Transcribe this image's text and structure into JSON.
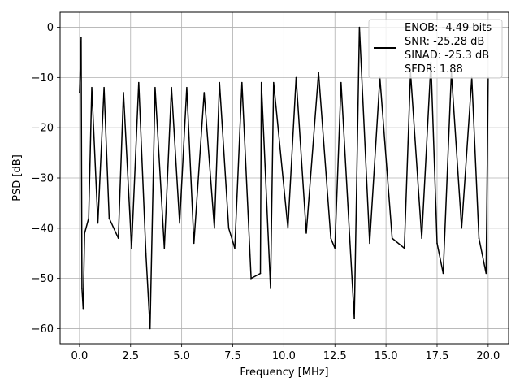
{
  "chart_data": {
    "type": "line",
    "title": "",
    "xlabel": "Frequency [MHz]",
    "ylabel": "PSD [dB]",
    "xlim": [
      -0.95,
      21.0
    ],
    "ylim": [
      -63,
      3
    ],
    "xticks": [
      0.0,
      2.5,
      5.0,
      7.5,
      10.0,
      12.5,
      15.0,
      17.5,
      20.0
    ],
    "xtick_labels": [
      "0.0",
      "2.5",
      "5.0",
      "7.5",
      "10.0",
      "12.5",
      "15.0",
      "17.5",
      "20.0"
    ],
    "yticks": [
      0,
      -10,
      -20,
      -30,
      -40,
      -50,
      -60
    ],
    "ytick_labels": [
      "0",
      "−10",
      "−20",
      "−30",
      "−40",
      "−50",
      "−60"
    ],
    "grid": true,
    "legend_position": "top-right",
    "series": [
      {
        "color": "#000000",
        "legend_lines": [
          "ENOB: -4.49 bits",
          "SNR: -25.28 dB",
          "SINAD: -25.3 dB",
          "SFDR: 1.88"
        ],
        "points": [
          [
            0.0,
            -13
          ],
          [
            0.08,
            -2
          ],
          [
            0.12,
            -52
          ],
          [
            0.18,
            -56
          ],
          [
            0.25,
            -41
          ],
          [
            0.45,
            -38
          ],
          [
            0.6,
            -12
          ],
          [
            0.9,
            -39
          ],
          [
            1.2,
            -12
          ],
          [
            1.45,
            -38
          ],
          [
            1.9,
            -42
          ],
          [
            2.15,
            -13
          ],
          [
            2.55,
            -44
          ],
          [
            2.9,
            -11
          ],
          [
            3.25,
            -45
          ],
          [
            3.45,
            -60
          ],
          [
            3.7,
            -12
          ],
          [
            4.15,
            -44
          ],
          [
            4.5,
            -12
          ],
          [
            4.9,
            -39
          ],
          [
            5.25,
            -12
          ],
          [
            5.6,
            -43
          ],
          [
            6.1,
            -13
          ],
          [
            6.6,
            -40
          ],
          [
            6.85,
            -11
          ],
          [
            7.3,
            -40
          ],
          [
            7.6,
            -44
          ],
          [
            7.95,
            -11
          ],
          [
            8.4,
            -50
          ],
          [
            8.9,
            -11
          ],
          [
            8.85,
            -49
          ],
          [
            9.35,
            -52
          ],
          [
            9.5,
            -11
          ],
          [
            10.2,
            -40
          ],
          [
            10.6,
            -10
          ],
          [
            11.1,
            -41
          ],
          [
            11.7,
            -9
          ],
          [
            12.3,
            -42
          ],
          [
            12.5,
            -44
          ],
          [
            12.8,
            -11
          ],
          [
            13.2,
            -40
          ],
          [
            13.45,
            -58
          ],
          [
            13.7,
            0
          ],
          [
            14.2,
            -43
          ],
          [
            14.7,
            -10
          ],
          [
            15.3,
            -42
          ],
          [
            15.9,
            -44
          ],
          [
            16.2,
            -9
          ],
          [
            16.75,
            -42
          ],
          [
            17.2,
            -7
          ],
          [
            17.5,
            -43
          ],
          [
            17.8,
            -49
          ],
          [
            18.2,
            -9
          ],
          [
            18.7,
            -40
          ],
          [
            19.2,
            -10
          ],
          [
            19.55,
            -42
          ],
          [
            19.9,
            -49
          ],
          [
            20.0,
            -10
          ]
        ]
      }
    ]
  }
}
